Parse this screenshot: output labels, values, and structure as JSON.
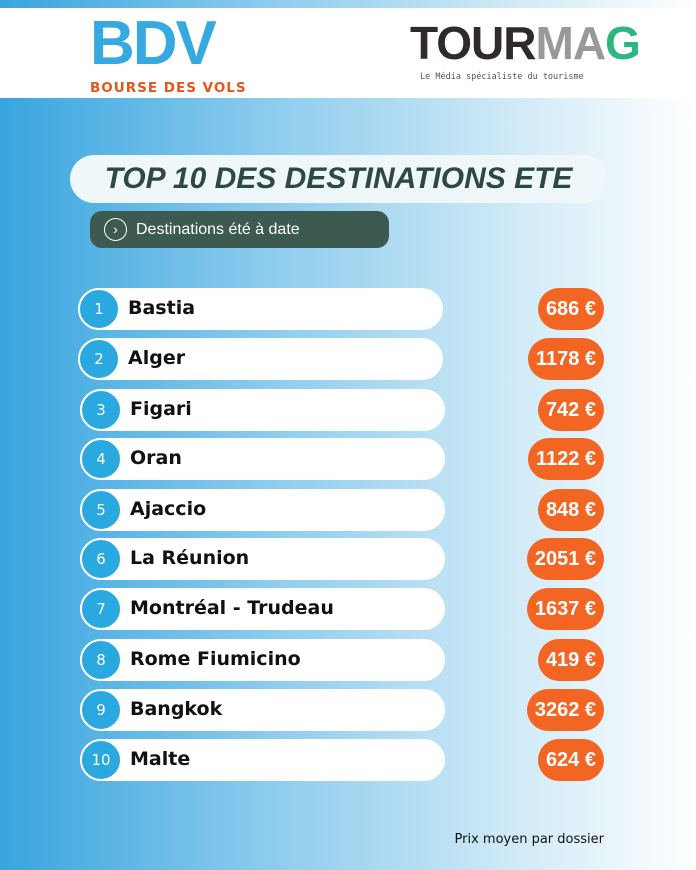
{
  "logos": {
    "bdv_big": "BDV",
    "bdv_small": "BOURSE DES VOLS",
    "tourmag_a": "TOUR",
    "tourmag_b": "MA",
    "tourmag_c": "G",
    "tourmag_tagline": "Le Média spécialiste du tourisme"
  },
  "title": "TOP 10 DES DESTINATIONS ETE",
  "subtitle": "Destinations été à date",
  "rows": [
    {
      "rank": "1",
      "name": "Bastia",
      "price": "686 €"
    },
    {
      "rank": "2",
      "name": "Alger",
      "price": "1178 €"
    },
    {
      "rank": "3",
      "name": "Figari",
      "price": "742 €"
    },
    {
      "rank": "4",
      "name": "Oran",
      "price": "1122 €"
    },
    {
      "rank": "5",
      "name": "Ajaccio",
      "price": "848 €"
    },
    {
      "rank": "6",
      "name": "La Réunion",
      "price": "2051 €"
    },
    {
      "rank": "7",
      "name": "Montréal - Trudeau",
      "price": "1637 €"
    },
    {
      "rank": "8",
      "name": "Rome Fiumicino",
      "price": "419 €"
    },
    {
      "rank": "9",
      "name": "Bangkok",
      "price": "3262 €"
    },
    {
      "rank": "10",
      "name": "Malte",
      "price": "624 €"
    }
  ],
  "footer": "Prix moyen par dossier",
  "colors": {
    "accent_blue": "#2aa8e0",
    "price_orange": "#f26522",
    "dark_green": "#3d5a50"
  }
}
